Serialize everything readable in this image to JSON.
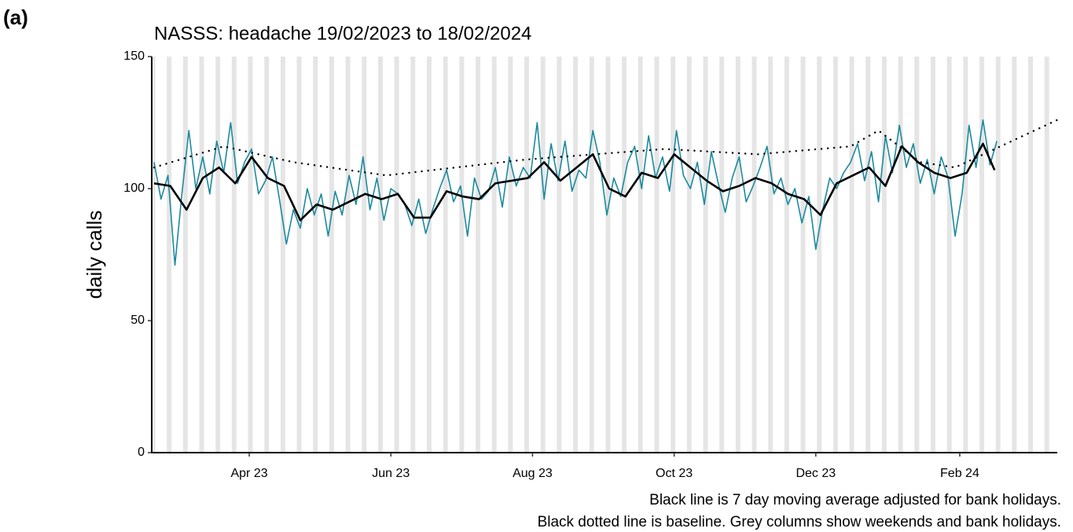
{
  "chart_data": {
    "type": "line",
    "panel_label": "(a)",
    "title": "NASSS: headache 19/02/2023 to 18/02/2024",
    "y_label": "daily calls",
    "notes": [
      "Black line is 7 day moving average adjusted for bank holidays.",
      "Black dotted line is baseline. Grey columns show weekends and bank holidays."
    ],
    "xlim": [
      -1,
      389
    ],
    "xticks": [
      {
        "value": 41,
        "label": "Apr 23"
      },
      {
        "value": 102,
        "label": "Jun 23"
      },
      {
        "value": 163,
        "label": "Aug 23"
      },
      {
        "value": 224,
        "label": "Oct 23"
      },
      {
        "value": 285,
        "label": "Dec 23"
      },
      {
        "value": 347,
        "label": "Feb 24"
      }
    ],
    "ylim": [
      0,
      150
    ],
    "yticks": [
      0,
      50,
      100,
      150
    ],
    "series": [
      {
        "color": "#1b8a9e",
        "style": "solid",
        "width": 1.6,
        "x": [
          0,
          3,
          6,
          9,
          12,
          15,
          18,
          21,
          24,
          27,
          30,
          33,
          36,
          39,
          42,
          45,
          48,
          51,
          54,
          57,
          60,
          63,
          66,
          69,
          72,
          75,
          78,
          81,
          84,
          87,
          90,
          93,
          96,
          99,
          102,
          105,
          108,
          111,
          114,
          117,
          120,
          123,
          126,
          129,
          132,
          135,
          138,
          141,
          144,
          147,
          150,
          153,
          156,
          159,
          162,
          165,
          168,
          171,
          174,
          177,
          180,
          183,
          186,
          189,
          192,
          195,
          198,
          201,
          204,
          207,
          210,
          213,
          216,
          219,
          222,
          225,
          228,
          231,
          234,
          237,
          240,
          243,
          246,
          249,
          252,
          255,
          258,
          261,
          264,
          267,
          270,
          273,
          276,
          279,
          282,
          285,
          288,
          291,
          294,
          297,
          300,
          303,
          306,
          309,
          312,
          315,
          318,
          321,
          324,
          327,
          330,
          333,
          336,
          339,
          342,
          345,
          348,
          351,
          354,
          357,
          360,
          363
        ],
        "values": [
          110,
          96,
          105,
          71,
          98,
          122,
          100,
          112,
          98,
          118,
          106,
          125,
          102,
          110,
          115,
          98,
          103,
          112,
          96,
          79,
          92,
          85,
          100,
          90,
          98,
          82,
          99,
          90,
          105,
          94,
          112,
          92,
          104,
          88,
          100,
          98,
          94,
          86,
          96,
          83,
          92,
          100,
          107,
          95,
          101,
          82,
          104,
          96,
          99,
          108,
          93,
          112,
          101,
          108,
          104,
          125,
          96,
          117,
          103,
          118,
          99,
          107,
          104,
          122,
          110,
          90,
          104,
          97,
          110,
          116,
          100,
          120,
          104,
          112,
          99,
          122,
          105,
          100,
          110,
          94,
          114,
          102,
          91,
          104,
          112,
          95,
          101,
          108,
          116,
          98,
          104,
          94,
          100,
          87,
          97,
          77,
          92,
          104,
          100,
          106,
          110,
          117,
          103,
          114,
          95,
          120,
          106,
          124,
          108,
          117,
          102,
          111,
          98,
          112,
          104,
          82,
          98,
          124,
          108,
          126,
          109,
          118
        ]
      },
      {
        "color": "#000000",
        "style": "solid",
        "width": 2.6,
        "x": [
          0,
          7,
          14,
          21,
          28,
          35,
          42,
          49,
          56,
          63,
          70,
          77,
          84,
          91,
          98,
          105,
          112,
          119,
          126,
          133,
          140,
          147,
          154,
          161,
          168,
          175,
          182,
          189,
          196,
          203,
          210,
          217,
          224,
          231,
          238,
          245,
          252,
          259,
          266,
          273,
          280,
          287,
          294,
          301,
          308,
          315,
          322,
          329,
          336,
          343,
          350,
          357,
          362
        ],
        "values": [
          102,
          101,
          92,
          104,
          108,
          102,
          112,
          104,
          101,
          88,
          94,
          92,
          95,
          98,
          96,
          98,
          89,
          89,
          99,
          97,
          96,
          102,
          103,
          104,
          110,
          103,
          108,
          113,
          100,
          97,
          106,
          104,
          113,
          108,
          103,
          99,
          101,
          104,
          102,
          98,
          96,
          90,
          102,
          105,
          108,
          101,
          116,
          110,
          106,
          104,
          106,
          117,
          107
        ]
      },
      {
        "color": "#000000",
        "style": "dotted",
        "width": 2.4,
        "x": [
          0,
          30,
          60,
          100,
          160,
          220,
          260,
          300,
          312,
          330,
          345,
          389
        ],
        "values": [
          108,
          116,
          110,
          105,
          111,
          115,
          113,
          116,
          122,
          110,
          108,
          126
        ]
      }
    ]
  }
}
